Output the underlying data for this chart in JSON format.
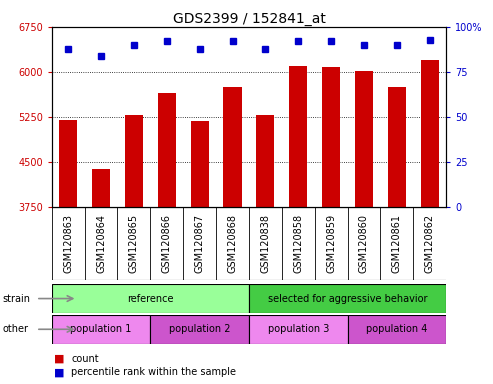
{
  "title": "GDS2399 / 152841_at",
  "categories": [
    "GSM120863",
    "GSM120864",
    "GSM120865",
    "GSM120866",
    "GSM120867",
    "GSM120868",
    "GSM120838",
    "GSM120858",
    "GSM120859",
    "GSM120860",
    "GSM120861",
    "GSM120862"
  ],
  "bar_values": [
    5200,
    4380,
    5280,
    5650,
    5180,
    5750,
    5280,
    6100,
    6080,
    6020,
    5750,
    6200
  ],
  "percentile_values": [
    88,
    84,
    90,
    92,
    88,
    92,
    88,
    92,
    92,
    90,
    90,
    93
  ],
  "ylim_left": [
    3750,
    6750
  ],
  "ylim_right": [
    0,
    100
  ],
  "yticks_left": [
    3750,
    4500,
    5250,
    6000,
    6750
  ],
  "yticks_right": [
    0,
    25,
    50,
    75,
    100
  ],
  "bar_color": "#cc0000",
  "dot_color": "#0000cc",
  "bg_color": "#ffffff",
  "strain_row": [
    {
      "label": "reference",
      "color": "#99ff99",
      "start": 0,
      "end": 6
    },
    {
      "label": "selected for aggressive behavior",
      "color": "#44cc44",
      "start": 6,
      "end": 12
    }
  ],
  "other_row": [
    {
      "label": "population 1",
      "color": "#ee88ee",
      "start": 0,
      "end": 3
    },
    {
      "label": "population 2",
      "color": "#cc55cc",
      "start": 3,
      "end": 6
    },
    {
      "label": "population 3",
      "color": "#ee88ee",
      "start": 6,
      "end": 9
    },
    {
      "label": "population 4",
      "color": "#cc55cc",
      "start": 9,
      "end": 12
    }
  ],
  "legend_count_color": "#cc0000",
  "legend_dot_color": "#0000cc",
  "legend_count_label": "count",
  "legend_dot_label": "percentile rank within the sample",
  "row_label_strain": "strain",
  "row_label_other": "other",
  "title_fontsize": 10,
  "tick_fontsize": 7,
  "label_fontsize": 7
}
